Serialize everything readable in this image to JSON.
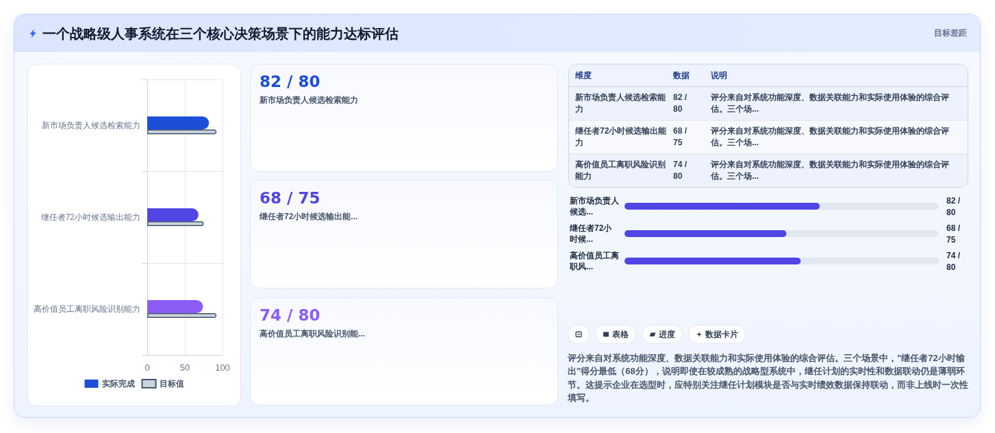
{
  "chart_data": [
    {
      "type": "bar",
      "title": "一个战略级人事系统在三个核心决策场景下的能力达标评估",
      "orientation": "horizontal",
      "categories": [
        "新市场负责人候选检索能力",
        "继任者72小时候选输出能力",
        "高价值员工离职风险识别能力"
      ],
      "series": [
        {
          "name": "实际完成",
          "color": "#1d4ed8",
          "colors": [
            "#1d4ed8",
            "#4f46e5",
            "#8b5cf6"
          ],
          "values": [
            82,
            68,
            74
          ]
        },
        {
          "name": "目标值",
          "color": "#cbd5e1",
          "values": [
            92,
            75,
            92
          ]
        }
      ],
      "xlim": [
        0,
        100
      ],
      "xticks": [
        0,
        50,
        100
      ],
      "grid": true,
      "legend": "bottom"
    },
    {
      "type": "other",
      "categories": [
        "新市场负责人候选检索能力",
        "继任者72小时候选输出能...",
        "高价值员工离职风险识别能..."
      ],
      "value_labels": [
        "82 / 80",
        "68 / 75",
        "74 / 80"
      ]
    },
    {
      "type": "other",
      "subtitle": "目标差距",
      "annotations": [
        "维度",
        "数据",
        "说明",
        "评分来自对系统功能深度、数据关联能力和实际使用体验的综合评估。三个场...",
        "评分来自对系统功能深度、数据关联能力和实际使用体验的综合评估。三个场...",
        "评分来自对系统功能深度、数据关联能力和实际使用体验的综合评估。三个场..."
      ],
      "categories": [
        "新市场负责人候选检索能力",
        "继任者72小时候选输出能力",
        "高价值员工离职风险识别能力"
      ],
      "value_labels": [
        "82 / 80",
        "68 / 75",
        "74 / 80"
      ]
    },
    {
      "type": "bar",
      "orientation": "horizontal",
      "categories": [
        "新市场负责人候选...",
        "继任者72小时候...",
        "高价值员工离职风..."
      ],
      "values": [
        82,
        68,
        74
      ],
      "value_labels": [
        "82 / 80",
        "68 / 75",
        "74 / 80"
      ],
      "color": "#4f46e5"
    },
    {
      "type": "other",
      "annotations": [
        "表格",
        "进度",
        "数据卡片",
        "评分来自对系统功能深度、数据关联能力和实际使用体验的综合评估。三个场景中，\"继任者72小时输出\"得分最低（68分），说明即使在较成熟的战略型系统中，继任计划的实时性和数据联动仍是薄弱环节。这提示企业在选型时，应特别关注继任计划模块是否与实时绩效数据保持联动，而非上线时一次性填写。"
      ]
    }
  ]
}
